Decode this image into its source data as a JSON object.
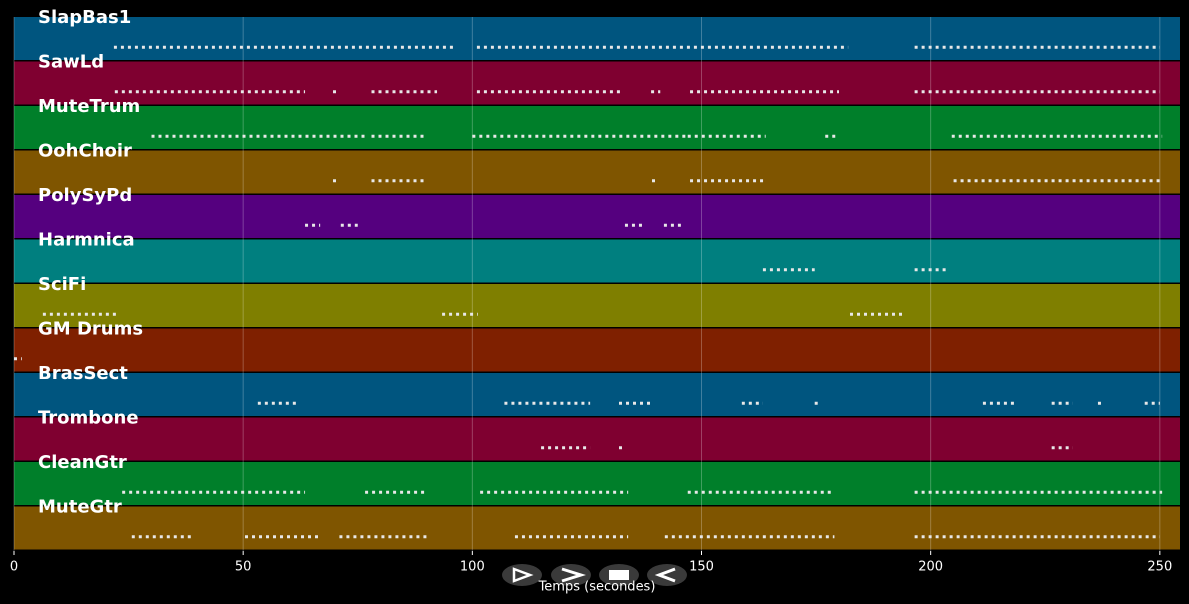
{
  "chart_data": {
    "type": "track",
    "x_label": "Temps (secondes)",
    "xlim": [
      0,
      254.4
    ],
    "xticks": [
      0,
      50,
      100,
      150,
      200,
      250
    ],
    "grid": true,
    "tracks": [
      {
        "name": "SlapBas1",
        "color": "#00557f",
        "notes": [
          [
            21.8,
            96.2
          ],
          [
            101,
            182
          ],
          [
            196.5,
            250
          ]
        ]
      },
      {
        "name": "SawLd",
        "color": "#7f0030",
        "notes": [
          [
            22,
            63.5
          ],
          [
            69.6,
            70.7
          ],
          [
            78,
            92.3
          ],
          [
            101,
            133
          ],
          [
            139,
            141
          ],
          [
            147.5,
            180
          ],
          [
            196.5,
            250
          ]
        ]
      },
      {
        "name": "MuteTrum",
        "color": "#007f2a",
        "notes": [
          [
            30,
            76.5
          ],
          [
            78,
            90
          ],
          [
            100,
            147
          ],
          [
            147,
            164
          ],
          [
            177,
            180
          ],
          [
            204.6,
            250.5
          ]
        ]
      },
      {
        "name": "OohChoir",
        "color": "#7f5500",
        "notes": [
          [
            69.6,
            70.7
          ],
          [
            78,
            90
          ],
          [
            139.2,
            140
          ],
          [
            147.5,
            164
          ],
          [
            205,
            250.5
          ]
        ]
      },
      {
        "name": "PolySyPd",
        "color": "#55007f",
        "notes": [
          [
            63.5,
            66.8
          ],
          [
            71.3,
            75
          ],
          [
            133.3,
            137.2
          ],
          [
            141.8,
            145.5
          ]
        ]
      },
      {
        "name": "Harmnica",
        "color": "#007f7f",
        "notes": [
          [
            163.4,
            174.7
          ],
          [
            196.5,
            203.7
          ]
        ]
      },
      {
        "name": "SciFi",
        "color": "#7f7f00",
        "notes": [
          [
            6.3,
            23.1
          ],
          [
            93.4,
            101.2
          ],
          [
            182.4,
            194.4
          ]
        ]
      },
      {
        "name": "GM Drums",
        "color": "#7f2000",
        "notes": [
          [
            0,
            1.7
          ]
        ]
      },
      {
        "name": "BrasSect",
        "color": "#00557f",
        "notes": [
          [
            53.2,
            62
          ],
          [
            107,
            125.7
          ],
          [
            132,
            139.4
          ],
          [
            158.8,
            163.4
          ],
          [
            174.7,
            175.4
          ],
          [
            211.4,
            218.4
          ],
          [
            226.4,
            231
          ],
          [
            236.5,
            237.3
          ],
          [
            246.7,
            250
          ]
        ]
      },
      {
        "name": "Trombone",
        "color": "#7f0030",
        "notes": [
          [
            115,
            125.7
          ],
          [
            132,
            133
          ],
          [
            226.4,
            231
          ]
        ]
      },
      {
        "name": "CleanGtr",
        "color": "#007f2a",
        "notes": [
          [
            23.6,
            63.5
          ],
          [
            76.6,
            90.3
          ],
          [
            101.7,
            134
          ],
          [
            147,
            179
          ],
          [
            196.5,
            250.5
          ]
        ]
      },
      {
        "name": "MuteGtr",
        "color": "#7f5500",
        "notes": [
          [
            25.7,
            38.8
          ],
          [
            50.4,
            66.8
          ],
          [
            71,
            90.3
          ],
          [
            109.3,
            134
          ],
          [
            142,
            179
          ],
          [
            196.5,
            250
          ]
        ]
      }
    ]
  }
}
